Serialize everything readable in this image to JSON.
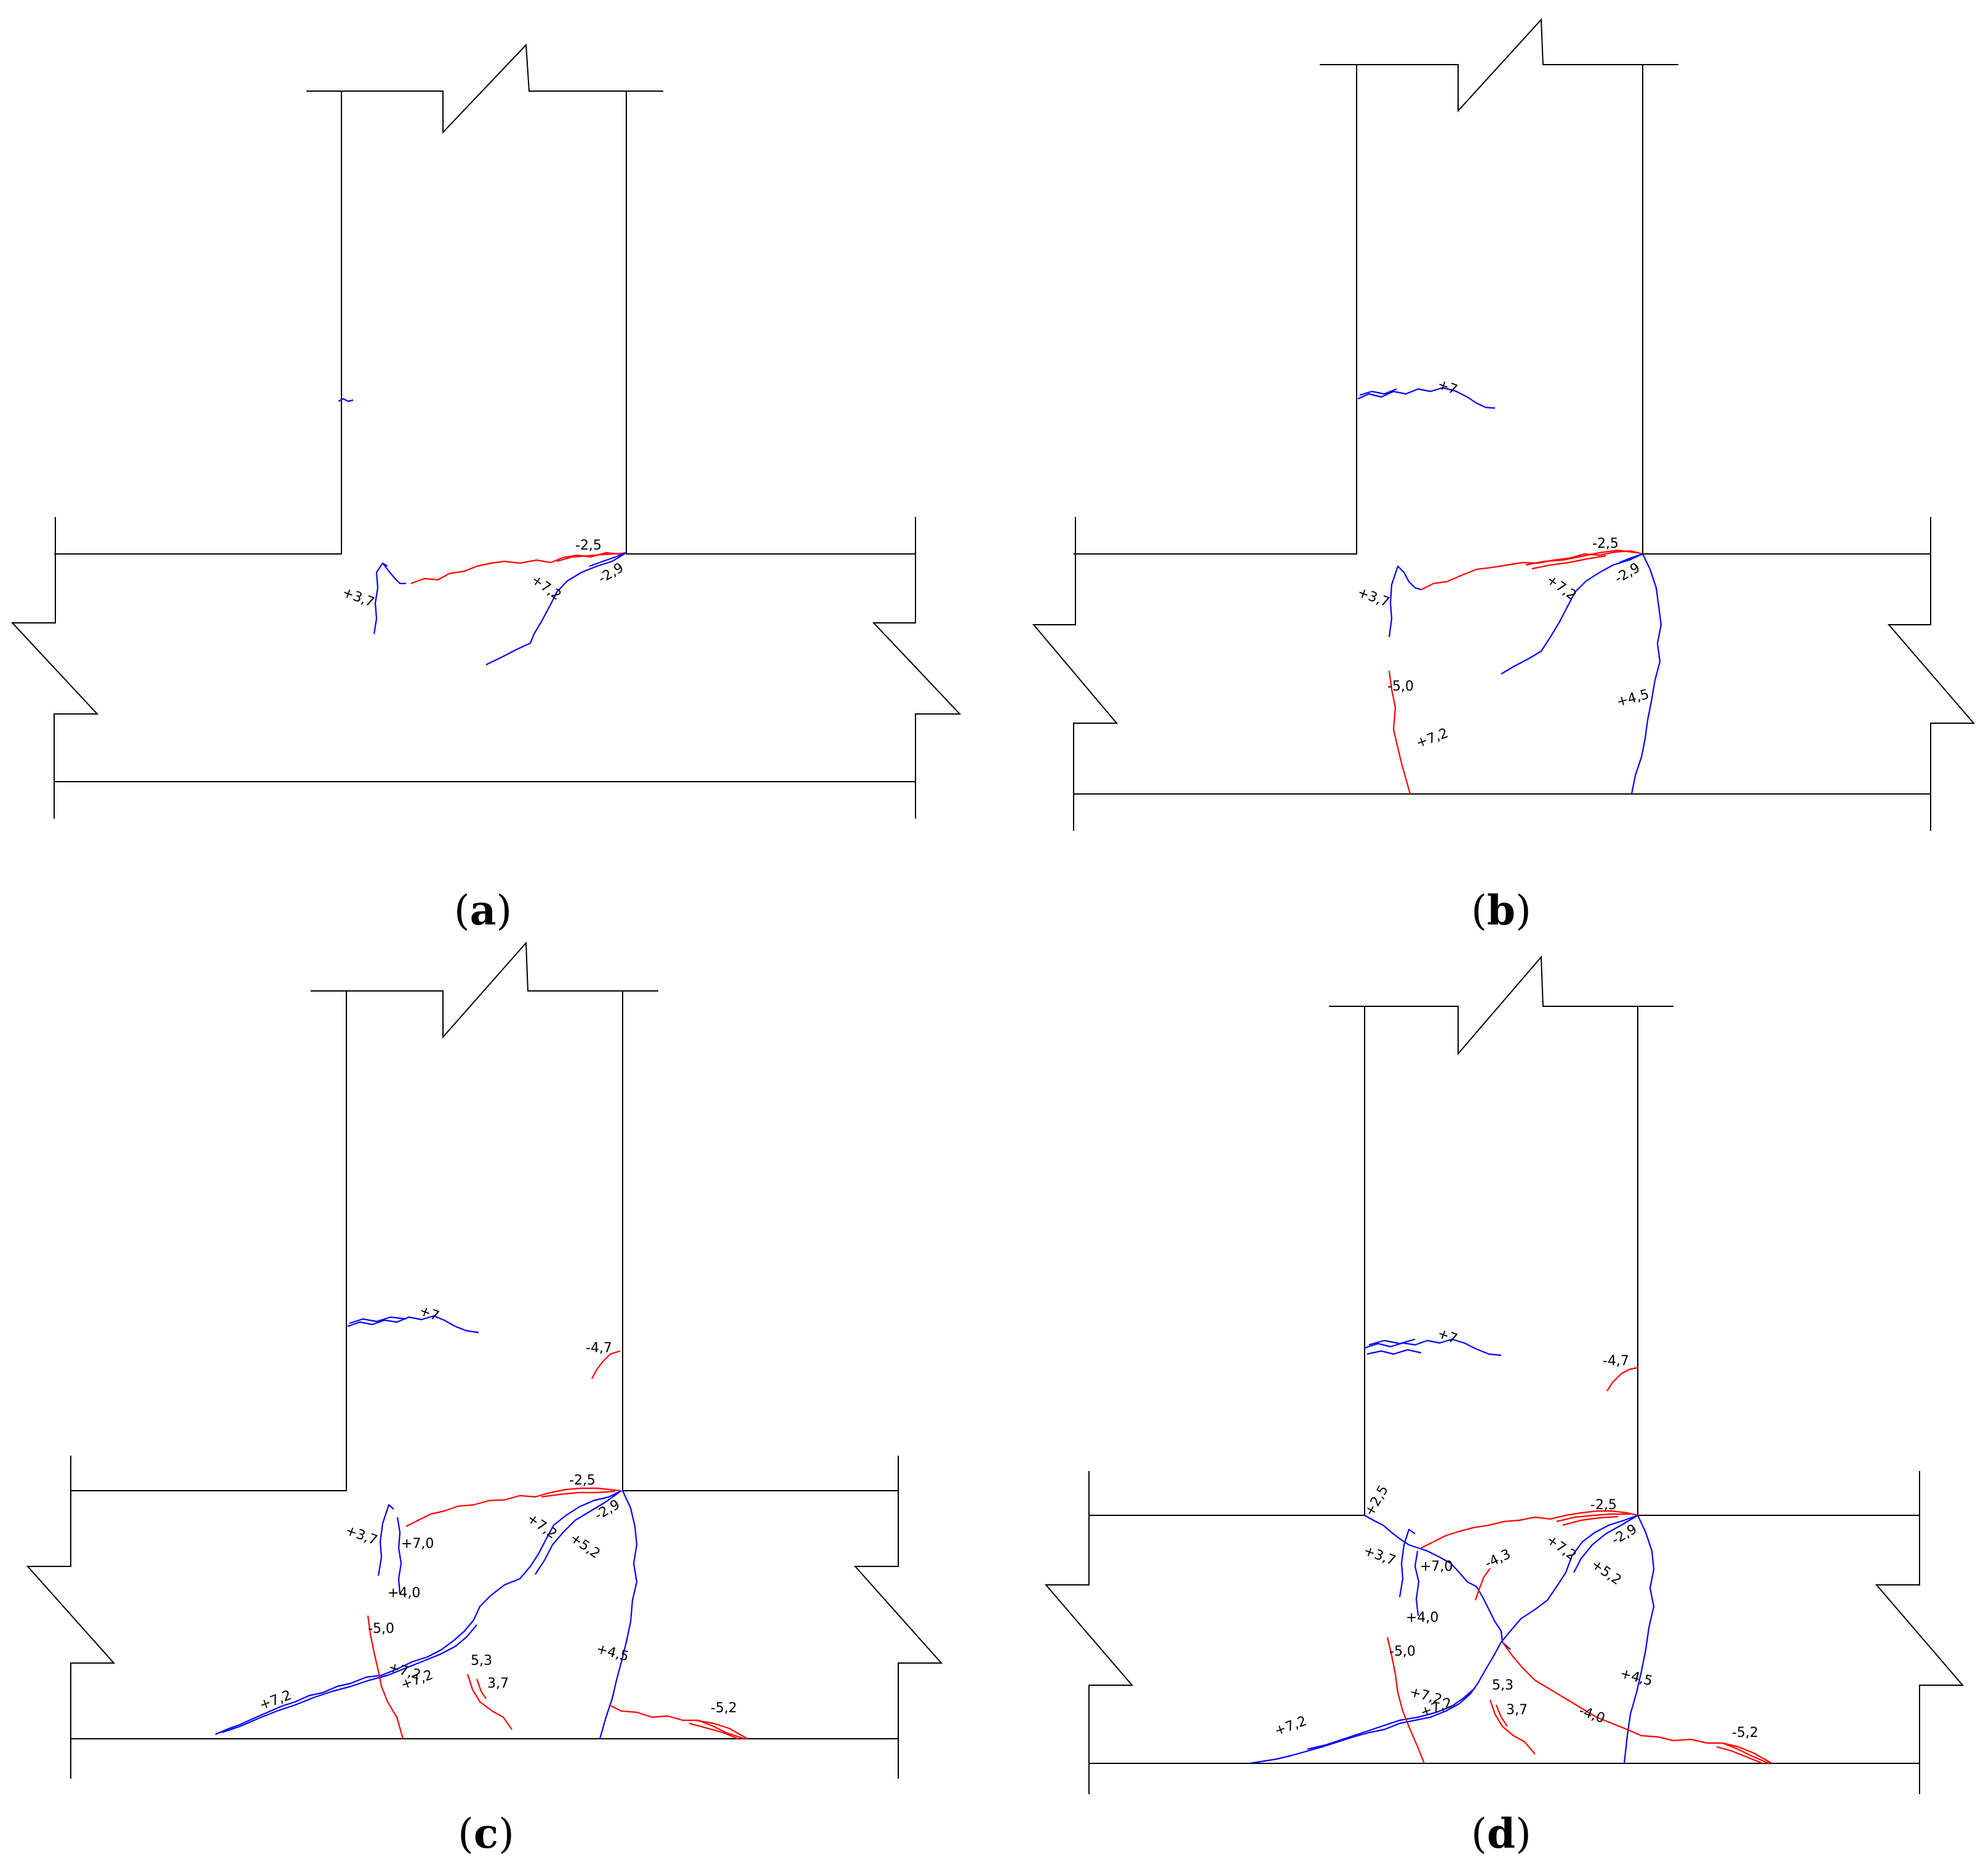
{
  "colors": {
    "positive_crack": "#0000ff",
    "negative_crack": "#ff0000",
    "outline": "#000000"
  },
  "panels": [
    {
      "caption": {
        "open": "(",
        "letter": "a",
        "close": ")"
      },
      "labels": [
        "-2,5",
        "+3,7",
        "+7,2",
        "-2,9"
      ]
    },
    {
      "caption": {
        "open": "(",
        "letter": "b",
        "close": ")"
      },
      "labels": [
        "+7",
        "-2,5",
        "+3,7",
        "+7,2",
        "-2,9",
        "-5,0",
        "+7,2",
        "+4,5"
      ]
    },
    {
      "caption": {
        "open": "(",
        "letter": "c",
        "close": ")"
      },
      "labels": [
        "+7",
        "-4,7",
        "-2,5",
        "+3,7",
        "+7,0",
        "+7,2",
        "-2,9",
        "+5,2",
        "+4,0",
        "-5,0",
        "+7,2",
        "5,3",
        "+7,2",
        "3,7",
        "+4,5",
        "+7,2",
        "-5,2"
      ]
    },
    {
      "caption": {
        "open": "(",
        "letter": "d",
        "close": ")"
      },
      "labels": [
        "+7",
        "-4,7",
        "-2,5",
        "+2,5",
        "+3,7",
        "+7,0",
        "-4,3",
        "+7,2",
        "-2,9",
        "+5,2",
        "+4,0",
        "-5,0",
        "+7,2",
        "5,3",
        "+7,2",
        "3,7",
        "-4,0",
        "+4,5",
        "+7,2",
        "-5,2"
      ]
    }
  ]
}
